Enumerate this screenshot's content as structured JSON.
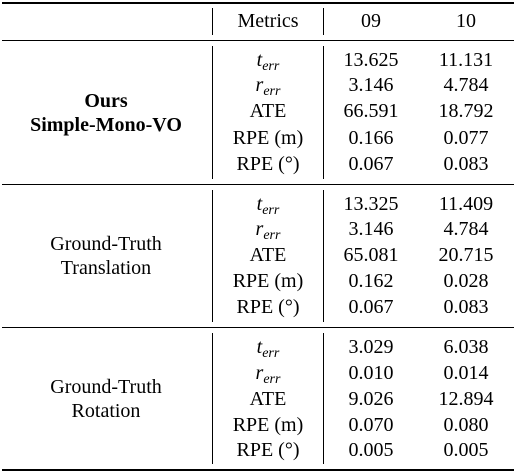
{
  "header": {
    "metrics_label": "Metrics",
    "col_09": "09",
    "col_10": "10"
  },
  "groups": [
    {
      "name_line1": "Ours",
      "name_line2": "Simple-Mono-VO",
      "rows": [
        {
          "metric_base": "t",
          "metric_sub": "err",
          "v09": "13.625",
          "v10": "11.131"
        },
        {
          "metric_base": "r",
          "metric_sub": "err",
          "v09": "3.146",
          "v10": "4.784"
        },
        {
          "metric": "ATE",
          "v09": "66.591",
          "v10": "18.792"
        },
        {
          "metric": "RPE (m)",
          "v09": "0.166",
          "v10": "0.077"
        },
        {
          "metric": "RPE (°)",
          "v09": "0.067",
          "v10": "0.083"
        }
      ]
    },
    {
      "name_line1": "Ground-Truth",
      "name_line2": "Translation",
      "rows": [
        {
          "metric_base": "t",
          "metric_sub": "err",
          "v09": "13.325",
          "v10": "11.409"
        },
        {
          "metric_base": "r",
          "metric_sub": "err",
          "v09": "3.146",
          "v10": "4.784"
        },
        {
          "metric": "ATE",
          "v09": "65.081",
          "v10": "20.715"
        },
        {
          "metric": "RPE (m)",
          "v09": "0.162",
          "v10": "0.028"
        },
        {
          "metric": "RPE (°)",
          "v09": "0.067",
          "v10": "0.083"
        }
      ]
    },
    {
      "name_line1": "Ground-Truth",
      "name_line2": "Rotation",
      "rows": [
        {
          "metric_base": "t",
          "metric_sub": "err",
          "v09": "3.029",
          "v10": "6.038"
        },
        {
          "metric_base": "r",
          "metric_sub": "err",
          "v09": "0.010",
          "v10": "0.014"
        },
        {
          "metric": "ATE",
          "v09": "9.026",
          "v10": "12.894"
        },
        {
          "metric": "RPE (m)",
          "v09": "0.070",
          "v10": "0.080"
        },
        {
          "metric": "RPE (°)",
          "v09": "0.005",
          "v10": "0.005"
        }
      ]
    }
  ]
}
